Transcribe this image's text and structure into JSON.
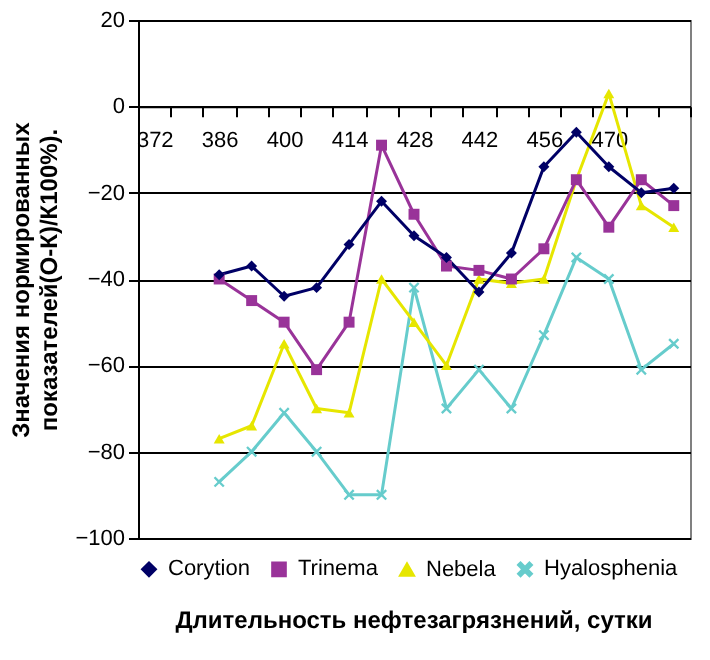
{
  "chart_data": {
    "type": "line",
    "xlabel": "Длительность нефтезагрязнений, сутки",
    "ylabel": "Значения нормированных показателей(О-К)/К100%).",
    "categories": [
      "372",
      null,
      "386",
      null,
      "400",
      null,
      "414",
      null,
      "428",
      null,
      "442",
      null,
      "456",
      null,
      "470",
      null,
      null
    ],
    "series": [
      {
        "name": "Corytion",
        "color": "#000066",
        "marker": "diamond",
        "values": [
          null,
          null,
          -39,
          -37,
          -44,
          -42,
          -32,
          -22,
          -30,
          -35,
          -43,
          -34,
          -14,
          -6,
          -14,
          -20,
          -19
        ]
      },
      {
        "name": "Trinema",
        "color": "#993399",
        "marker": "square",
        "values": [
          null,
          null,
          -40,
          -45,
          -50,
          -61,
          -50,
          -9,
          -25,
          -37,
          -38,
          -40,
          -33,
          -17,
          -28,
          -17,
          -23
        ]
      },
      {
        "name": "Nebela",
        "color": "#e6e600",
        "marker": "triangle",
        "values": [
          null,
          null,
          -77,
          -74,
          -55,
          -70,
          -71,
          -40,
          -50,
          -60,
          -40,
          -41,
          -40,
          -17,
          3,
          -23,
          -28
        ]
      },
      {
        "name": "Hyalosphenia",
        "color": "#66cccc",
        "marker": "cross",
        "values": [
          null,
          null,
          -87,
          -80,
          -71,
          -80,
          -90,
          -90,
          -42,
          -70,
          -61,
          -70,
          -53,
          -35,
          -40,
          -61,
          -55
        ]
      }
    ],
    "ylim": [
      -100,
      20
    ],
    "yticks": [
      -100,
      -80,
      -60,
      -40,
      -20,
      0,
      20
    ],
    "grid": "y",
    "legend": "bottom"
  }
}
